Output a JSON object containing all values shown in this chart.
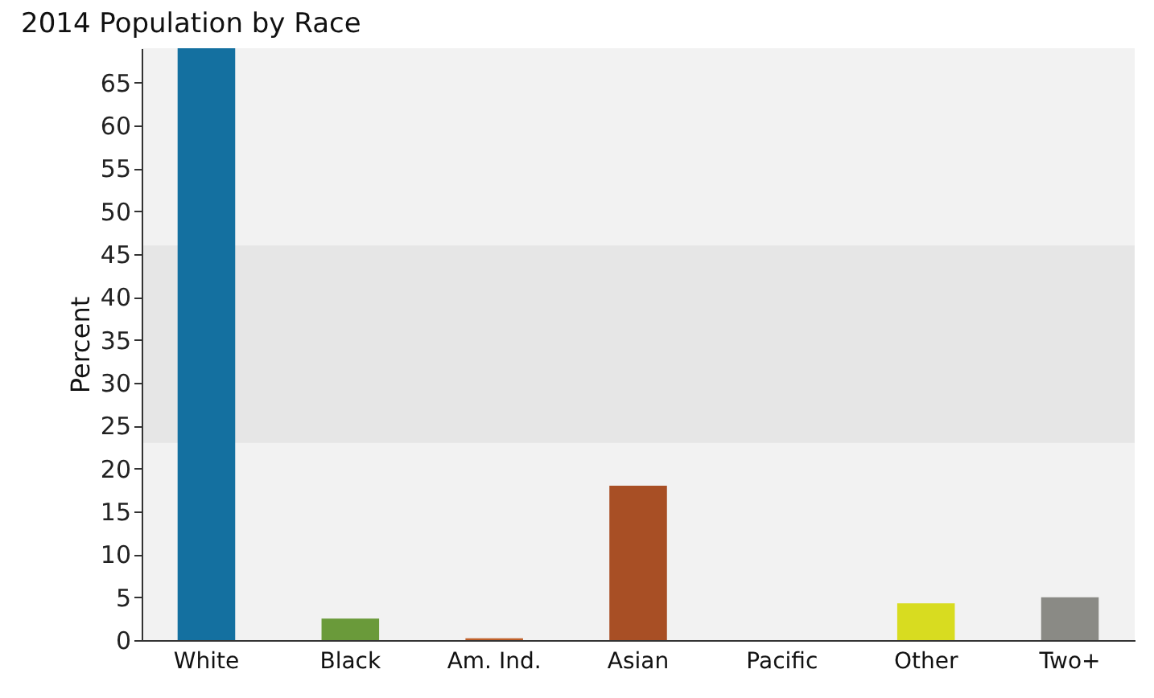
{
  "chart_data": {
    "type": "bar",
    "title": "2014 Population by Race",
    "ylabel": "Percent",
    "categories": [
      "White",
      "Black",
      "Am. Ind.",
      "Asian",
      "Pacific",
      "Other",
      "Two+"
    ],
    "values": [
      69,
      2.5,
      0.2,
      18,
      0,
      4.3,
      5
    ],
    "colors": [
      "#1470a0",
      "#6a9a3a",
      "#c0602a",
      "#a84f25",
      "#7a7a7a",
      "#d8dc20",
      "#8a8a85"
    ],
    "ylim": [
      0,
      69
    ],
    "yticks": [
      0,
      5,
      10,
      15,
      20,
      25,
      30,
      35,
      40,
      45,
      50,
      55,
      60,
      65
    ],
    "bands": [
      {
        "axis": "y",
        "from": 23,
        "to": 46,
        "color": "#e6e6e6"
      }
    ],
    "grid": false,
    "legend": false
  }
}
